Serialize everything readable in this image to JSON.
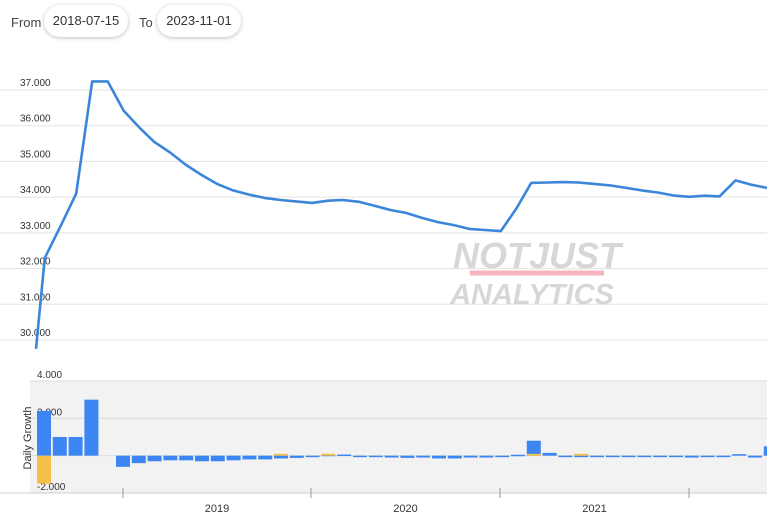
{
  "range": {
    "from_label": "From",
    "from_value": "2018-07-15",
    "to_label": "To",
    "to_value": "2023-11-01"
  },
  "watermark": {
    "line1": "NOTJUST",
    "line2": "ANALYTICS"
  },
  "colors": {
    "line": "#3b86d9",
    "positive_bar": "#3b86f2",
    "negative_bar": "#f5c04a",
    "grid": "#e3e3e3",
    "lower_bg": "#f2f2f2"
  },
  "chart_data": [
    {
      "type": "line",
      "ylim": [
        30000,
        37000
      ],
      "y_ticks": [
        "30.000",
        "31.000",
        "32.000",
        "33.000",
        "34.000",
        "35.000",
        "36.000",
        "37.000"
      ],
      "x": [
        "2018-07-15",
        "2018-08-01",
        "2018-09-01",
        "2018-10-01",
        "2018-11-01",
        "2018-12-01",
        "2019-01-01",
        "2019-02-01",
        "2019-03-01",
        "2019-04-01",
        "2019-05-01",
        "2019-06-01",
        "2019-07-01",
        "2019-08-01",
        "2019-09-01",
        "2019-10-01",
        "2019-11-01",
        "2019-12-01",
        "2020-01-01",
        "2020-02-01",
        "2020-03-01",
        "2020-04-01",
        "2020-05-01",
        "2020-06-01",
        "2020-07-01",
        "2020-08-01",
        "2020-09-01",
        "2020-10-01",
        "2020-11-01",
        "2020-12-01",
        "2021-01-01",
        "2021-02-01",
        "2021-03-01",
        "2021-04-01",
        "2021-05-01",
        "2021-06-01",
        "2021-07-01",
        "2021-08-01",
        "2021-09-01",
        "2021-10-01",
        "2021-11-01",
        "2021-12-01",
        "2022-01-01",
        "2022-02-01",
        "2022-03-01",
        "2022-04-01",
        "2022-05-01",
        "2022-06-01"
      ],
      "values": [
        29750,
        32300,
        33200,
        34100,
        37240,
        37240,
        36420,
        35940,
        35550,
        35250,
        34910,
        34620,
        34370,
        34190,
        34070,
        33980,
        33920,
        33880,
        33840,
        33900,
        33920,
        33870,
        33760,
        33640,
        33560,
        33420,
        33300,
        33220,
        33110,
        33080,
        33050,
        33700,
        34400,
        34410,
        34420,
        34410,
        34370,
        34330,
        34260,
        34190,
        34130,
        34050,
        34010,
        34040,
        34020,
        34470,
        34350,
        34260
      ]
    },
    {
      "type": "bar",
      "ylabel": "Daily Growth",
      "ylim": [
        -2000,
        4000
      ],
      "y_ticks": [
        "-2.000",
        "0",
        "2.000",
        "4.000"
      ],
      "x_labels": [
        "2019",
        "2020",
        "2021"
      ],
      "series": [
        {
          "values": [
            2400,
            1000,
            1000,
            3000,
            0,
            -600,
            -400,
            -300,
            -250,
            -250,
            -300,
            -300,
            -250,
            -200,
            -200,
            -150,
            -120,
            -80,
            50,
            60,
            -40,
            -50,
            -100,
            -120,
            -100,
            -150,
            -150,
            -100,
            -100,
            -60,
            50,
            800,
            150,
            -60,
            -70,
            -40,
            -50,
            -80,
            -80,
            -60,
            -70,
            -100,
            -80,
            -70,
            80,
            -100,
            500,
            -100,
            -120
          ]
        },
        {
          "values": [
            -1500,
            0,
            0,
            0,
            0,
            0,
            0,
            0,
            0,
            0,
            0,
            0,
            0,
            0,
            0,
            100,
            0,
            0,
            100,
            0,
            0,
            0,
            0,
            0,
            0,
            0,
            0,
            0,
            0,
            0,
            0,
            100,
            0,
            0,
            100,
            0,
            0,
            0,
            0,
            0,
            0,
            0,
            0,
            0,
            0,
            0,
            0,
            0,
            0
          ]
        }
      ]
    }
  ]
}
